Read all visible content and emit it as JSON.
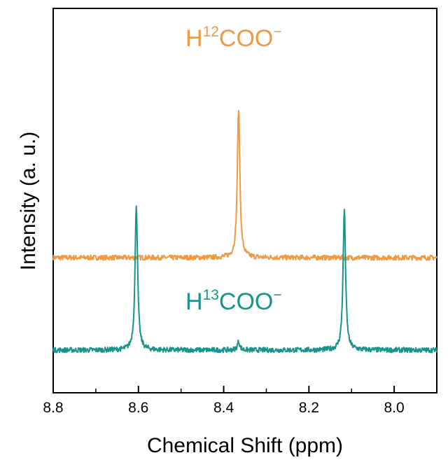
{
  "chart_data": {
    "type": "line",
    "title": "",
    "xlabel": "Chemical Shift (ppm)",
    "ylabel": "Intensity (a. u.)",
    "xlim": [
      8.8,
      7.9
    ],
    "x_reversed": true,
    "x_ticks": [
      8.8,
      8.6,
      8.4,
      8.2,
      8.0
    ],
    "x_tick_labels": [
      "8.8",
      "8.6",
      "8.4",
      "8.2",
      "8.0"
    ],
    "y_ticks_labeled": false,
    "grid": false,
    "legend": "none",
    "series": [
      {
        "name": "H12COO−",
        "label": {
          "main": "H",
          "sup": "12",
          "rest": "COO",
          "charge": "−"
        },
        "color": "#EE9A44",
        "baseline": 0.55,
        "peaks": [
          {
            "x": 8.365,
            "height": 0.89
          }
        ]
      },
      {
        "name": "H13COO−",
        "label": {
          "main": "H",
          "sup": "13",
          "rest": "COO",
          "charge": "−"
        },
        "color": "#17948B",
        "baseline": 0.0,
        "peaks": [
          {
            "x": 8.605,
            "height": 0.87
          },
          {
            "x": 8.117,
            "height": 0.84
          },
          {
            "x": 8.365,
            "height": 0.05
          }
        ]
      }
    ]
  }
}
